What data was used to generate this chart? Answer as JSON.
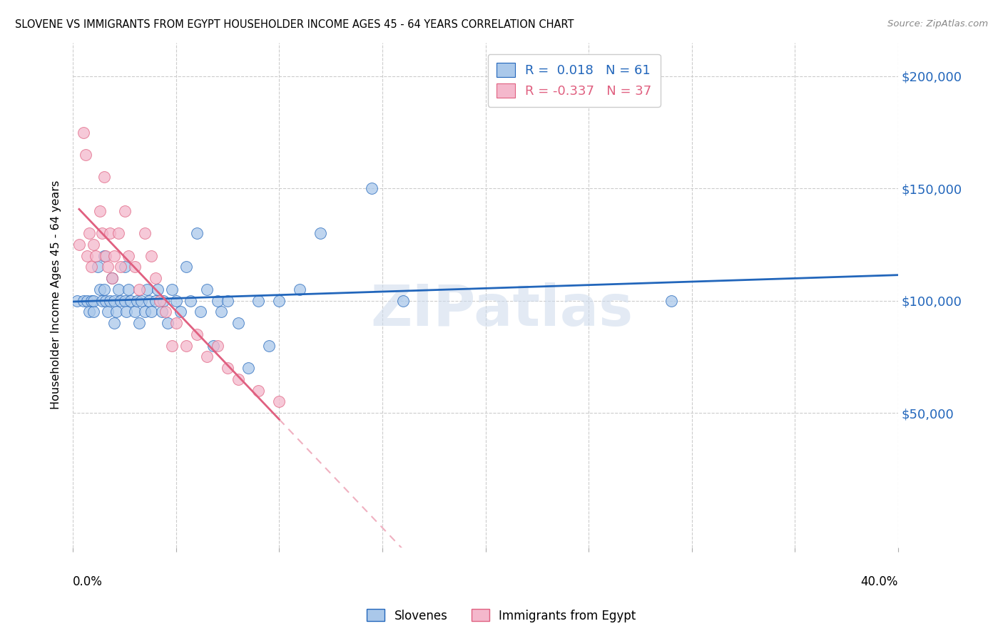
{
  "title": "SLOVENE VS IMMIGRANTS FROM EGYPT HOUSEHOLDER INCOME AGES 45 - 64 YEARS CORRELATION CHART",
  "source": "Source: ZipAtlas.com",
  "ylabel": "Householder Income Ages 45 - 64 years",
  "ytick_values": [
    50000,
    100000,
    150000,
    200000
  ],
  "ytick_labels": [
    "$50,000",
    "$100,000",
    "$150,000",
    "$200,000"
  ],
  "ylim": [
    -10000,
    215000
  ],
  "xlim": [
    0,
    0.4
  ],
  "blue_color": "#aac8ea",
  "pink_color": "#f4b8cc",
  "blue_line_color": "#2266bb",
  "pink_line_color": "#e06080",
  "pink_dashed_color": "#f0b0c0",
  "watermark": "ZIPatlas",
  "slovene_x": [
    0.002,
    0.005,
    0.007,
    0.008,
    0.009,
    0.01,
    0.01,
    0.012,
    0.013,
    0.014,
    0.015,
    0.015,
    0.016,
    0.017,
    0.018,
    0.019,
    0.02,
    0.02,
    0.021,
    0.022,
    0.023,
    0.025,
    0.025,
    0.026,
    0.027,
    0.028,
    0.03,
    0.031,
    0.032,
    0.033,
    0.035,
    0.036,
    0.037,
    0.038,
    0.04,
    0.041,
    0.043,
    0.044,
    0.046,
    0.048,
    0.05,
    0.052,
    0.055,
    0.057,
    0.06,
    0.062,
    0.065,
    0.068,
    0.07,
    0.072,
    0.075,
    0.08,
    0.085,
    0.09,
    0.095,
    0.1,
    0.11,
    0.12,
    0.145,
    0.16,
    0.29
  ],
  "slovene_y": [
    100000,
    100000,
    100000,
    95000,
    100000,
    95000,
    100000,
    115000,
    105000,
    100000,
    120000,
    105000,
    100000,
    95000,
    100000,
    110000,
    100000,
    90000,
    95000,
    105000,
    100000,
    115000,
    100000,
    95000,
    105000,
    100000,
    95000,
    100000,
    90000,
    100000,
    95000,
    105000,
    100000,
    95000,
    100000,
    105000,
    95000,
    100000,
    90000,
    105000,
    100000,
    95000,
    115000,
    100000,
    130000,
    95000,
    105000,
    80000,
    100000,
    95000,
    100000,
    90000,
    70000,
    100000,
    80000,
    100000,
    105000,
    130000,
    150000,
    100000,
    100000
  ],
  "egypt_x": [
    0.003,
    0.005,
    0.006,
    0.007,
    0.008,
    0.009,
    0.01,
    0.011,
    0.013,
    0.014,
    0.015,
    0.016,
    0.017,
    0.018,
    0.019,
    0.02,
    0.022,
    0.023,
    0.025,
    0.027,
    0.03,
    0.032,
    0.035,
    0.038,
    0.04,
    0.042,
    0.045,
    0.048,
    0.05,
    0.055,
    0.06,
    0.065,
    0.07,
    0.075,
    0.08,
    0.09,
    0.1
  ],
  "egypt_y": [
    125000,
    175000,
    165000,
    120000,
    130000,
    115000,
    125000,
    120000,
    140000,
    130000,
    155000,
    120000,
    115000,
    130000,
    110000,
    120000,
    130000,
    115000,
    140000,
    120000,
    115000,
    105000,
    130000,
    120000,
    110000,
    100000,
    95000,
    80000,
    90000,
    80000,
    85000,
    75000,
    80000,
    70000,
    65000,
    60000,
    55000
  ]
}
